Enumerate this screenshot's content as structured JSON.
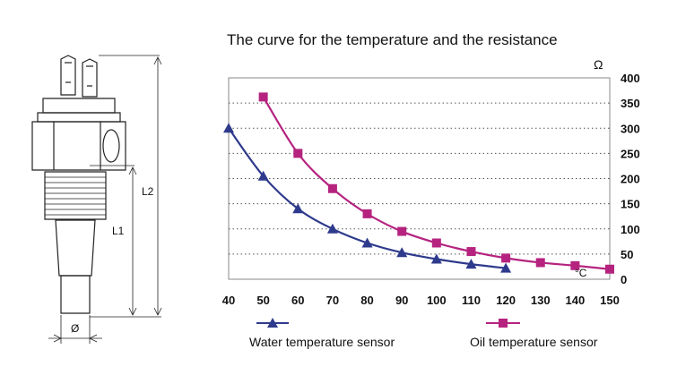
{
  "chart_data": {
    "type": "line",
    "title": "The curve for the temperature and the resistance",
    "xlabel": "°C",
    "ylabel": "Ω",
    "x": [
      40,
      50,
      60,
      70,
      80,
      90,
      100,
      110,
      120,
      130,
      140,
      150
    ],
    "xlim": [
      40,
      150
    ],
    "ylim": [
      0,
      400
    ],
    "x_ticks": [
      "40",
      "50",
      "60",
      "70",
      "80",
      "90",
      "100",
      "110",
      "120",
      "130",
      "140",
      "150"
    ],
    "y_ticks": [
      "0",
      "50",
      "100",
      "150",
      "200",
      "250",
      "300",
      "350",
      "400"
    ],
    "y_axis_side": "right",
    "grid": "horizontal-dotted",
    "legend_position": "bottom",
    "series": [
      {
        "name": "Water temperature sensor",
        "marker": "triangle",
        "color": "#2e3a8c",
        "x": [
          40,
          50,
          60,
          70,
          80,
          90,
          100,
          110,
          120
        ],
        "values": [
          300,
          205,
          140,
          100,
          72,
          53,
          40,
          30,
          22
        ]
      },
      {
        "name": "Oil temperature sensor",
        "marker": "square",
        "color": "#b5237f",
        "x": [
          50,
          60,
          70,
          80,
          90,
          100,
          110,
          120,
          130,
          140,
          150
        ],
        "values": [
          362,
          250,
          180,
          130,
          95,
          72,
          55,
          42,
          33,
          27,
          20
        ]
      }
    ]
  },
  "sensor_drawing": {
    "labels": {
      "l1": "L1",
      "l2": "L2",
      "diameter": "Ø"
    }
  }
}
